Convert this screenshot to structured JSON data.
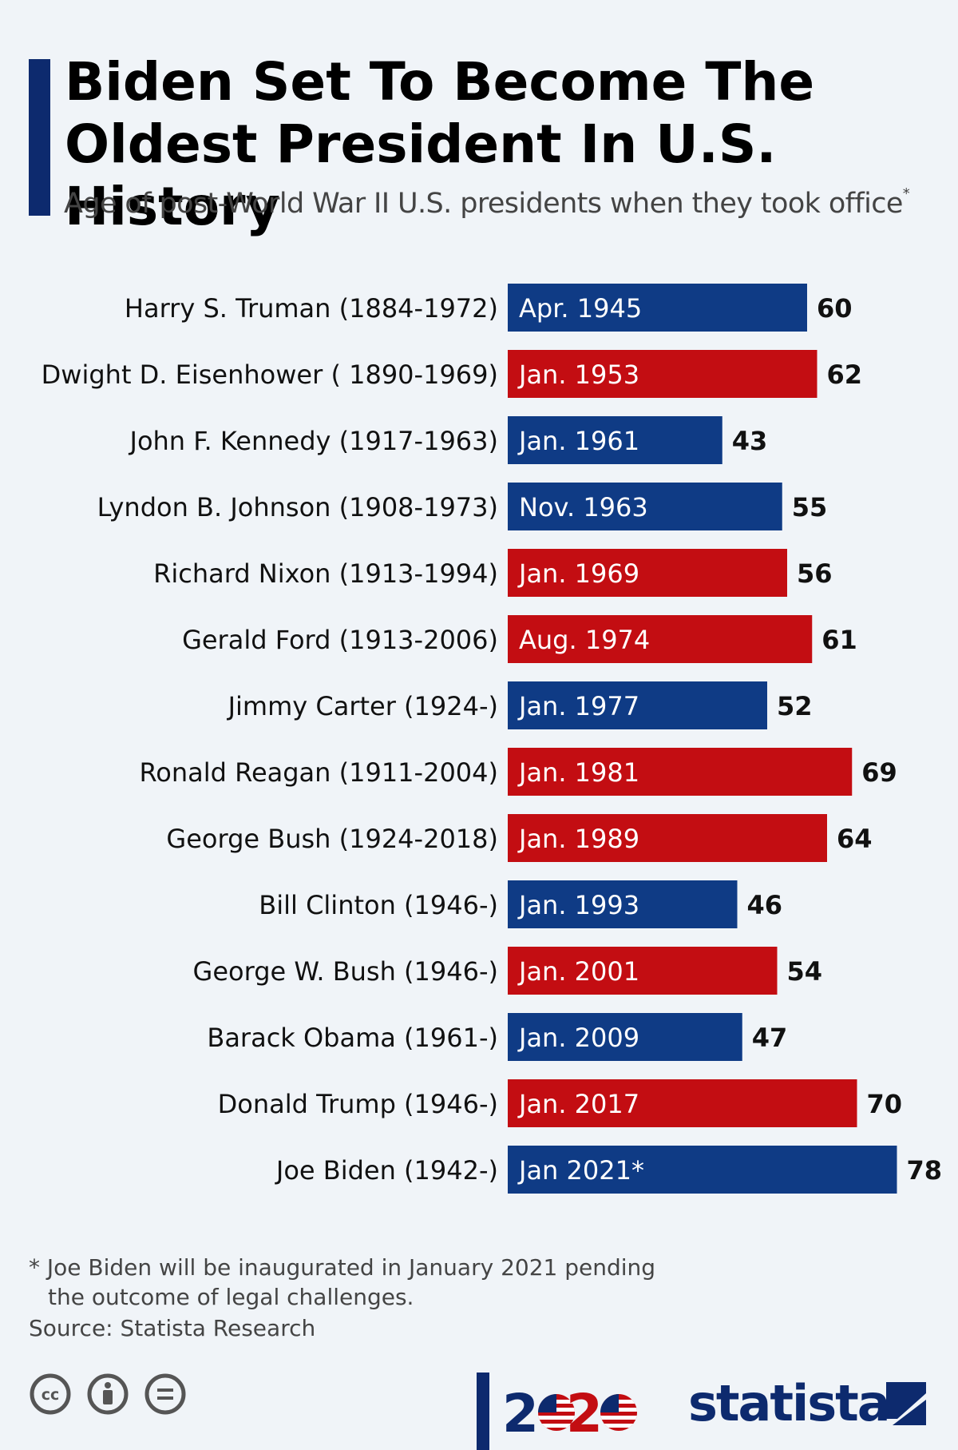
{
  "header": {
    "title": "Biden Set To Become The Oldest President In U.S. History",
    "subtitle": "Age of post-World War II U.S. presidents when they took office",
    "subtitle_mark": "*"
  },
  "colors": {
    "democrat": "#0f3b85",
    "republican": "#c30d12",
    "accent": "#0d2a6e",
    "background": "#f0f4f8"
  },
  "chart_data": {
    "type": "bar",
    "orientation": "horizontal",
    "title": "Biden Set To Become The Oldest President In U.S. History",
    "subtitle": "Age of post-World War II U.S. presidents when they took office*",
    "categories": [
      "Harry S. Truman (1884-1972)",
      "Dwight D. Eisenhower ( 1890-1969)",
      "John F. Kennedy (1917-1963)",
      "Lyndon B. Johnson (1908-1973)",
      "Richard Nixon (1913-1994)",
      "Gerald Ford (1913-2006)",
      "Jimmy Carter (1924-)",
      "Ronald Reagan (1911-2004)",
      "George Bush (1924-2018)",
      "Bill Clinton (1946-)",
      "George W. Bush (1946-)",
      "Barack Obama (1961-)",
      "Donald Trump (1946-)",
      "Joe Biden (1942-)"
    ],
    "values": [
      60,
      62,
      43,
      55,
      56,
      61,
      52,
      69,
      64,
      46,
      54,
      47,
      70,
      78
    ],
    "bar_labels": [
      "Apr. 1945",
      "Jan. 1953",
      "Jan. 1961",
      "Nov. 1963",
      "Jan. 1969",
      "Aug. 1974",
      "Jan. 1977",
      "Jan. 1981",
      "Jan. 1989",
      "Jan. 1993",
      "Jan. 2001",
      "Jan. 2009",
      "Jan. 2017",
      "Jan 2021*"
    ],
    "party": [
      "D",
      "R",
      "D",
      "D",
      "R",
      "R",
      "D",
      "R",
      "R",
      "D",
      "R",
      "D",
      "R",
      "D"
    ],
    "xlim": [
      0,
      80
    ],
    "grid": false,
    "legend": "none"
  },
  "footer": {
    "footnote_line1": "* Joe Biden will be inaugurated in January 2021 pending",
    "footnote_line2": "the outcome of legal challenges.",
    "source": "Source: Statista Research",
    "brand_year": "2020",
    "brand_name": "statista",
    "license_icons": [
      "cc-icon",
      "by-icon",
      "nd-icon"
    ]
  }
}
